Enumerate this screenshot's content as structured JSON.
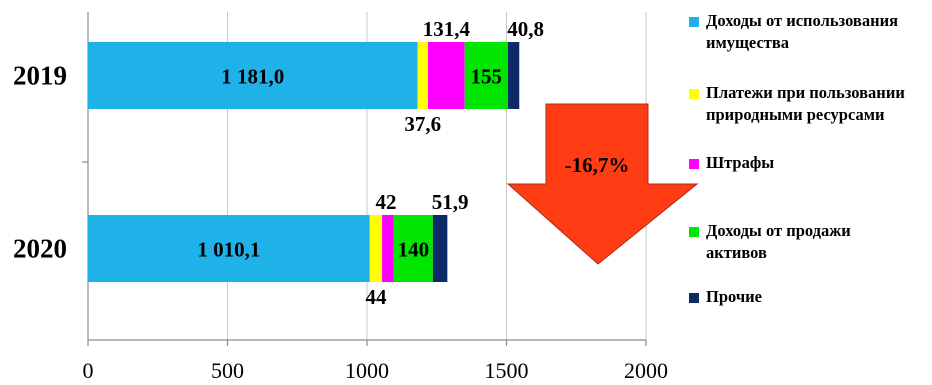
{
  "chart_data": {
    "type": "bar",
    "orientation": "horizontal",
    "stacked": true,
    "categories": [
      "2019",
      "2020"
    ],
    "series": [
      {
        "name": "Доходы от использования имущества",
        "color": "#1fb2e8",
        "values": [
          1181.0,
          1010.1
        ],
        "labels": [
          "1 181,0",
          "1 010,1"
        ]
      },
      {
        "name": "Платежи при пользовании природными ресурсами",
        "color": "#ffff00",
        "values": [
          37.6,
          44
        ],
        "labels": [
          "37,6",
          "44"
        ]
      },
      {
        "name": "Штрафы",
        "color": "#ff00ff",
        "values": [
          131.4,
          42
        ],
        "labels": [
          "131,4",
          "42"
        ]
      },
      {
        "name": "Доходы от продажи активов",
        "color": "#00e600",
        "values": [
          155,
          140
        ],
        "labels": [
          "155",
          "140"
        ]
      },
      {
        "name": "Прочие",
        "color": "#0d2a66",
        "values": [
          40.8,
          51.9
        ],
        "labels": [
          "40,8",
          "51,9"
        ]
      }
    ],
    "xlim": [
      0,
      2000
    ],
    "xticks": [
      0,
      500,
      1000,
      1500,
      2000
    ],
    "xtick_labels": [
      "0",
      "500",
      "1000",
      "1500",
      "2000"
    ],
    "grid": "vertical",
    "legend_position": "right",
    "annotation": {
      "text": "-16,7%",
      "shape": "down-arrow",
      "color": "#ff3c14"
    },
    "title": "",
    "xlabel": "",
    "ylabel": ""
  }
}
